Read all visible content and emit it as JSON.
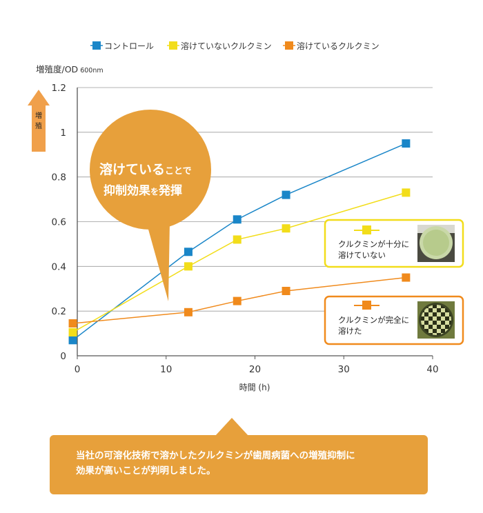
{
  "chart_data": {
    "type": "line",
    "x_ticks": [
      "0",
      "10",
      "20",
      "30",
      "40"
    ],
    "y_ticks": [
      "0",
      "0.2",
      "0.4",
      "0.6",
      "0.8",
      "1",
      "1.2"
    ],
    "xlabel": "時間 (h)",
    "ylabel": "増殖度/OD",
    "ylabel_unit": "600nm",
    "xlim": [
      0,
      40
    ],
    "ylim": [
      0,
      1.2
    ],
    "grid": true,
    "legend_position": "top",
    "series": [
      {
        "name": "コントロール",
        "color": "#1a86c8",
        "x": [
          -0.5,
          12.5,
          18,
          23.5,
          37
        ],
        "y": [
          0.07,
          0.465,
          0.61,
          0.72,
          0.95
        ]
      },
      {
        "name": "溶けていないクルクミン",
        "color": "#f2dd1a",
        "x": [
          -0.5,
          12.5,
          18,
          23.5,
          37
        ],
        "y": [
          0.105,
          0.4,
          0.52,
          0.57,
          0.73
        ]
      },
      {
        "name": "溶けているクルクミン",
        "color": "#f08a1c",
        "x": [
          -0.5,
          12.5,
          18,
          23.5,
          37
        ],
        "y": [
          0.145,
          0.195,
          0.245,
          0.29,
          0.35
        ]
      }
    ]
  },
  "growth_arrow": {
    "label": "増殖",
    "color": "#f0a04b"
  },
  "callout": {
    "line1_big": "溶けている",
    "line1_small": "ことで",
    "line2_big": "抑制効果",
    "line2_small": "を",
    "line2_big2": "発揮",
    "color": "#e7a03b"
  },
  "sample_boxes": [
    {
      "line1": "クルクミンが十分に",
      "line2": "溶けていない",
      "border": "#f2dd1a",
      "marker": "#f2dd1a",
      "photo": "plain-plate"
    },
    {
      "line1": "クルクミンが完全に",
      "line2": "溶けた",
      "border": "#f08a1c",
      "marker": "#f08a1c",
      "photo": "checkered-plate"
    }
  ],
  "conclusion": {
    "line1": "当社の可溶化技術で溶かしたクルクミンが歯周病菌への増殖抑制に",
    "line2": "効果が高いことが判明しました。"
  }
}
